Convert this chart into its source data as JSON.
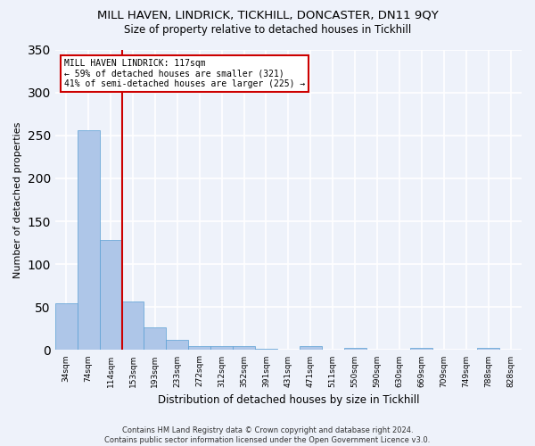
{
  "title": "MILL HAVEN, LINDRICK, TICKHILL, DONCASTER, DN11 9QY",
  "subtitle": "Size of property relative to detached houses in Tickhill",
  "xlabel": "Distribution of detached houses by size in Tickhill",
  "ylabel": "Number of detached properties",
  "bar_color": "#aec6e8",
  "bar_edge_color": "#5a9fd4",
  "background_color": "#eef2fa",
  "grid_color": "#ffffff",
  "red_line_color": "#cc0000",
  "annotation_box_color": "#cc0000",
  "annotation_text": "MILL HAVEN LINDRICK: 117sqm\n← 59% of detached houses are smaller (321)\n41% of semi-detached houses are larger (225) →",
  "footer": "Contains HM Land Registry data © Crown copyright and database right 2024.\nContains public sector information licensed under the Open Government Licence v3.0.",
  "bin_labels": [
    "34sqm",
    "74sqm",
    "114sqm",
    "153sqm",
    "193sqm",
    "233sqm",
    "272sqm",
    "312sqm",
    "352sqm",
    "391sqm",
    "431sqm",
    "471sqm",
    "511sqm",
    "550sqm",
    "590sqm",
    "630sqm",
    "669sqm",
    "709sqm",
    "749sqm",
    "788sqm",
    "828sqm"
  ],
  "bar_values": [
    54,
    256,
    128,
    57,
    26,
    12,
    5,
    5,
    5,
    2,
    0,
    5,
    0,
    3,
    0,
    0,
    3,
    0,
    0,
    3,
    0
  ],
  "red_line_index": 2,
  "ylim": [
    0,
    350
  ],
  "yticks": [
    0,
    50,
    100,
    150,
    200,
    250,
    300,
    350
  ]
}
